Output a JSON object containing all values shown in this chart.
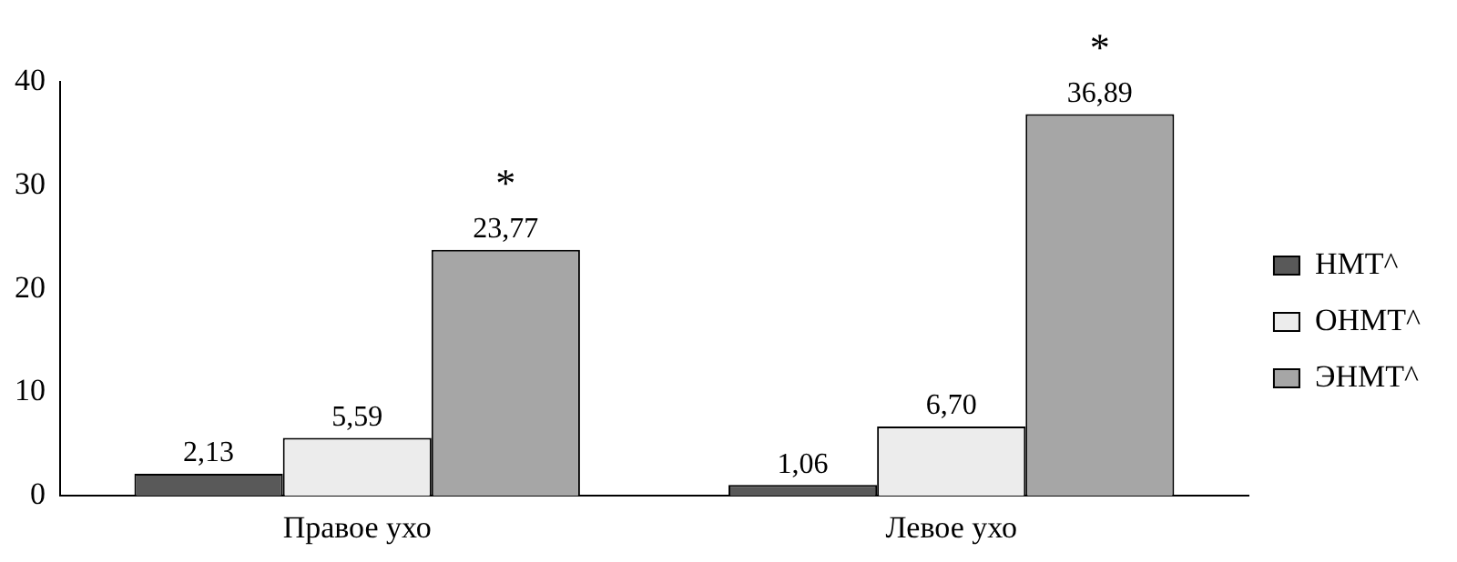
{
  "chart_data": {
    "type": "bar",
    "categories": [
      "Правое ухо",
      "Левое ухо"
    ],
    "series": [
      {
        "name": "НМТ^",
        "color": "#595959",
        "values": [
          2.13,
          1.06
        ],
        "value_labels": [
          "2,13",
          "1,06"
        ]
      },
      {
        "name": "ОНМТ^",
        "color": "#ececec",
        "values": [
          5.59,
          6.7
        ],
        "value_labels": [
          "5,59",
          "6,70"
        ]
      },
      {
        "name": "ЭНМТ^",
        "color": "#a6a6a6",
        "values": [
          23.77,
          36.89
        ],
        "value_labels": [
          "23,77",
          "36,89"
        ]
      }
    ],
    "ylim": [
      0,
      40
    ],
    "yticks": [
      0,
      10,
      20,
      30,
      40
    ],
    "grid": false,
    "legend": "right",
    "annotations": [
      "*",
      "*"
    ]
  }
}
